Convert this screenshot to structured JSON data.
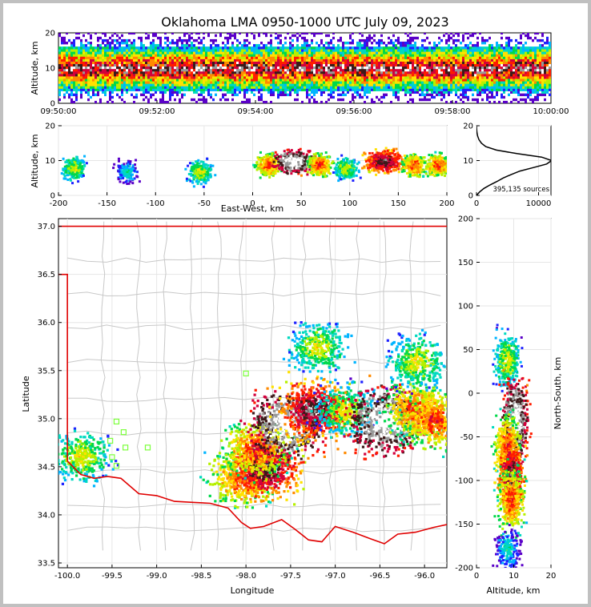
{
  "title": "Oklahoma LMA 0950-1000 UTC July 09, 2023",
  "chart_data": [
    {
      "id": "time_height",
      "type": "heatmap",
      "ylabel": "Altitude, km",
      "ylim": [
        0,
        20
      ],
      "yticks": [
        "0",
        "10",
        "20"
      ],
      "xticks": [
        "09:50:00",
        "09:52:00",
        "09:54:00",
        "09:56:00",
        "09:58:00",
        "10:00:00"
      ],
      "xlim": [
        "09:50:00",
        "10:00:00"
      ]
    },
    {
      "id": "ew_height",
      "type": "heatmap",
      "xlabel": "East-West, km",
      "ylabel": "Altitude, km",
      "xlim": [
        -200,
        200
      ],
      "ylim": [
        0,
        20
      ],
      "xticks": [
        "-200",
        "-150",
        "-100",
        "-50",
        "0",
        "50",
        "100",
        "150",
        "200"
      ],
      "yticks": [
        "0",
        "10",
        "20"
      ],
      "cores": [
        {
          "x": -185,
          "z": 8,
          "level": 2
        },
        {
          "x": -130,
          "z": 7,
          "level": 1
        },
        {
          "x": -55,
          "z": 7,
          "level": 2
        },
        {
          "x": 15,
          "z": 9,
          "level": 3
        },
        {
          "x": 42,
          "z": 10,
          "level": 5
        },
        {
          "x": 68,
          "z": 9,
          "level": 3
        },
        {
          "x": 95,
          "z": 8,
          "level": 2
        },
        {
          "x": 135,
          "z": 10,
          "level": 4
        },
        {
          "x": 165,
          "z": 9,
          "level": 3
        },
        {
          "x": 190,
          "z": 9,
          "level": 3
        }
      ]
    },
    {
      "id": "alt_histogram",
      "type": "line",
      "ylim": [
        0,
        20
      ],
      "xlim": [
        0,
        12000
      ],
      "xticks": [
        "0",
        "10000"
      ],
      "yticks": [
        "0",
        "10",
        "20"
      ],
      "annotation": "395,135 sources",
      "altitude": [
        0,
        1,
        2,
        3,
        4,
        5,
        6,
        7,
        8,
        9,
        10,
        11,
        12,
        13,
        14,
        15,
        16,
        17,
        18,
        19,
        20
      ],
      "count": [
        0,
        500,
        1200,
        2200,
        3300,
        4300,
        5600,
        7000,
        9200,
        11300,
        12100,
        10500,
        6500,
        3200,
        1500,
        800,
        400,
        200,
        80,
        30,
        0
      ]
    },
    {
      "id": "plan_view",
      "type": "heatmap",
      "xlabel": "Longitude",
      "ylabel": "Latitude",
      "xlim": [
        -100.1,
        -95.75
      ],
      "ylim": [
        33.45,
        37.08
      ],
      "xticks": [
        "-100.0",
        "-99.5",
        "-99.0",
        "-98.5",
        "-98.0",
        "-97.5",
        "-97.0",
        "-96.5",
        "-96.0"
      ],
      "yticks": [
        "33.5",
        "34.0",
        "34.5",
        "35.0",
        "35.5",
        "36.0",
        "36.5",
        "37.0"
      ],
      "cores": [
        {
          "lon": -99.85,
          "lat": 34.62,
          "level": 2
        },
        {
          "lon": -98.05,
          "lat": 34.4,
          "level": 3
        },
        {
          "lon": -97.8,
          "lat": 34.5,
          "level": 4
        },
        {
          "lon": -97.9,
          "lat": 34.7,
          "level": 3
        },
        {
          "lon": -97.55,
          "lat": 34.95,
          "level": 5
        },
        {
          "lon": -97.25,
          "lat": 35.1,
          "level": 4
        },
        {
          "lon": -96.9,
          "lat": 35.1,
          "level": 2
        },
        {
          "lon": -96.45,
          "lat": 35.0,
          "level": 5
        },
        {
          "lon": -96.1,
          "lat": 35.1,
          "level": 3
        },
        {
          "lon": -95.9,
          "lat": 35.0,
          "level": 3
        },
        {
          "lon": -97.2,
          "lat": 35.75,
          "level": 2
        },
        {
          "lon": -96.1,
          "lat": 35.6,
          "level": 2
        }
      ],
      "stations": [
        {
          "lon": -98.0,
          "lat": 35.47
        },
        {
          "lon": -99.45,
          "lat": 34.97
        },
        {
          "lon": -99.37,
          "lat": 34.86
        },
        {
          "lon": -99.52,
          "lat": 34.77
        },
        {
          "lon": -99.35,
          "lat": 34.7
        },
        {
          "lon": -99.1,
          "lat": 34.7
        },
        {
          "lon": -99.5,
          "lat": 34.6
        },
        {
          "lon": -99.45,
          "lat": 34.51
        }
      ]
    },
    {
      "id": "ns_height",
      "type": "heatmap",
      "xlabel": "Altitude, km",
      "ylabel": "North-South, km",
      "xlim": [
        0,
        20
      ],
      "ylim": [
        -200,
        200
      ],
      "xticks": [
        "0",
        "10",
        "20"
      ],
      "yticks": [
        "-200",
        "-150",
        "-100",
        "-50",
        "0",
        "50",
        "100",
        "150",
        "200"
      ],
      "cores": [
        {
          "ns": 40,
          "z": 8,
          "level": 2
        },
        {
          "ns": -30,
          "z": 10,
          "level": 5
        },
        {
          "ns": -60,
          "z": 8,
          "level": 3
        },
        {
          "ns": -95,
          "z": 9,
          "level": 4
        },
        {
          "ns": -120,
          "z": 9,
          "level": 3
        },
        {
          "ns": -178,
          "z": 8,
          "level": 1
        }
      ]
    }
  ]
}
